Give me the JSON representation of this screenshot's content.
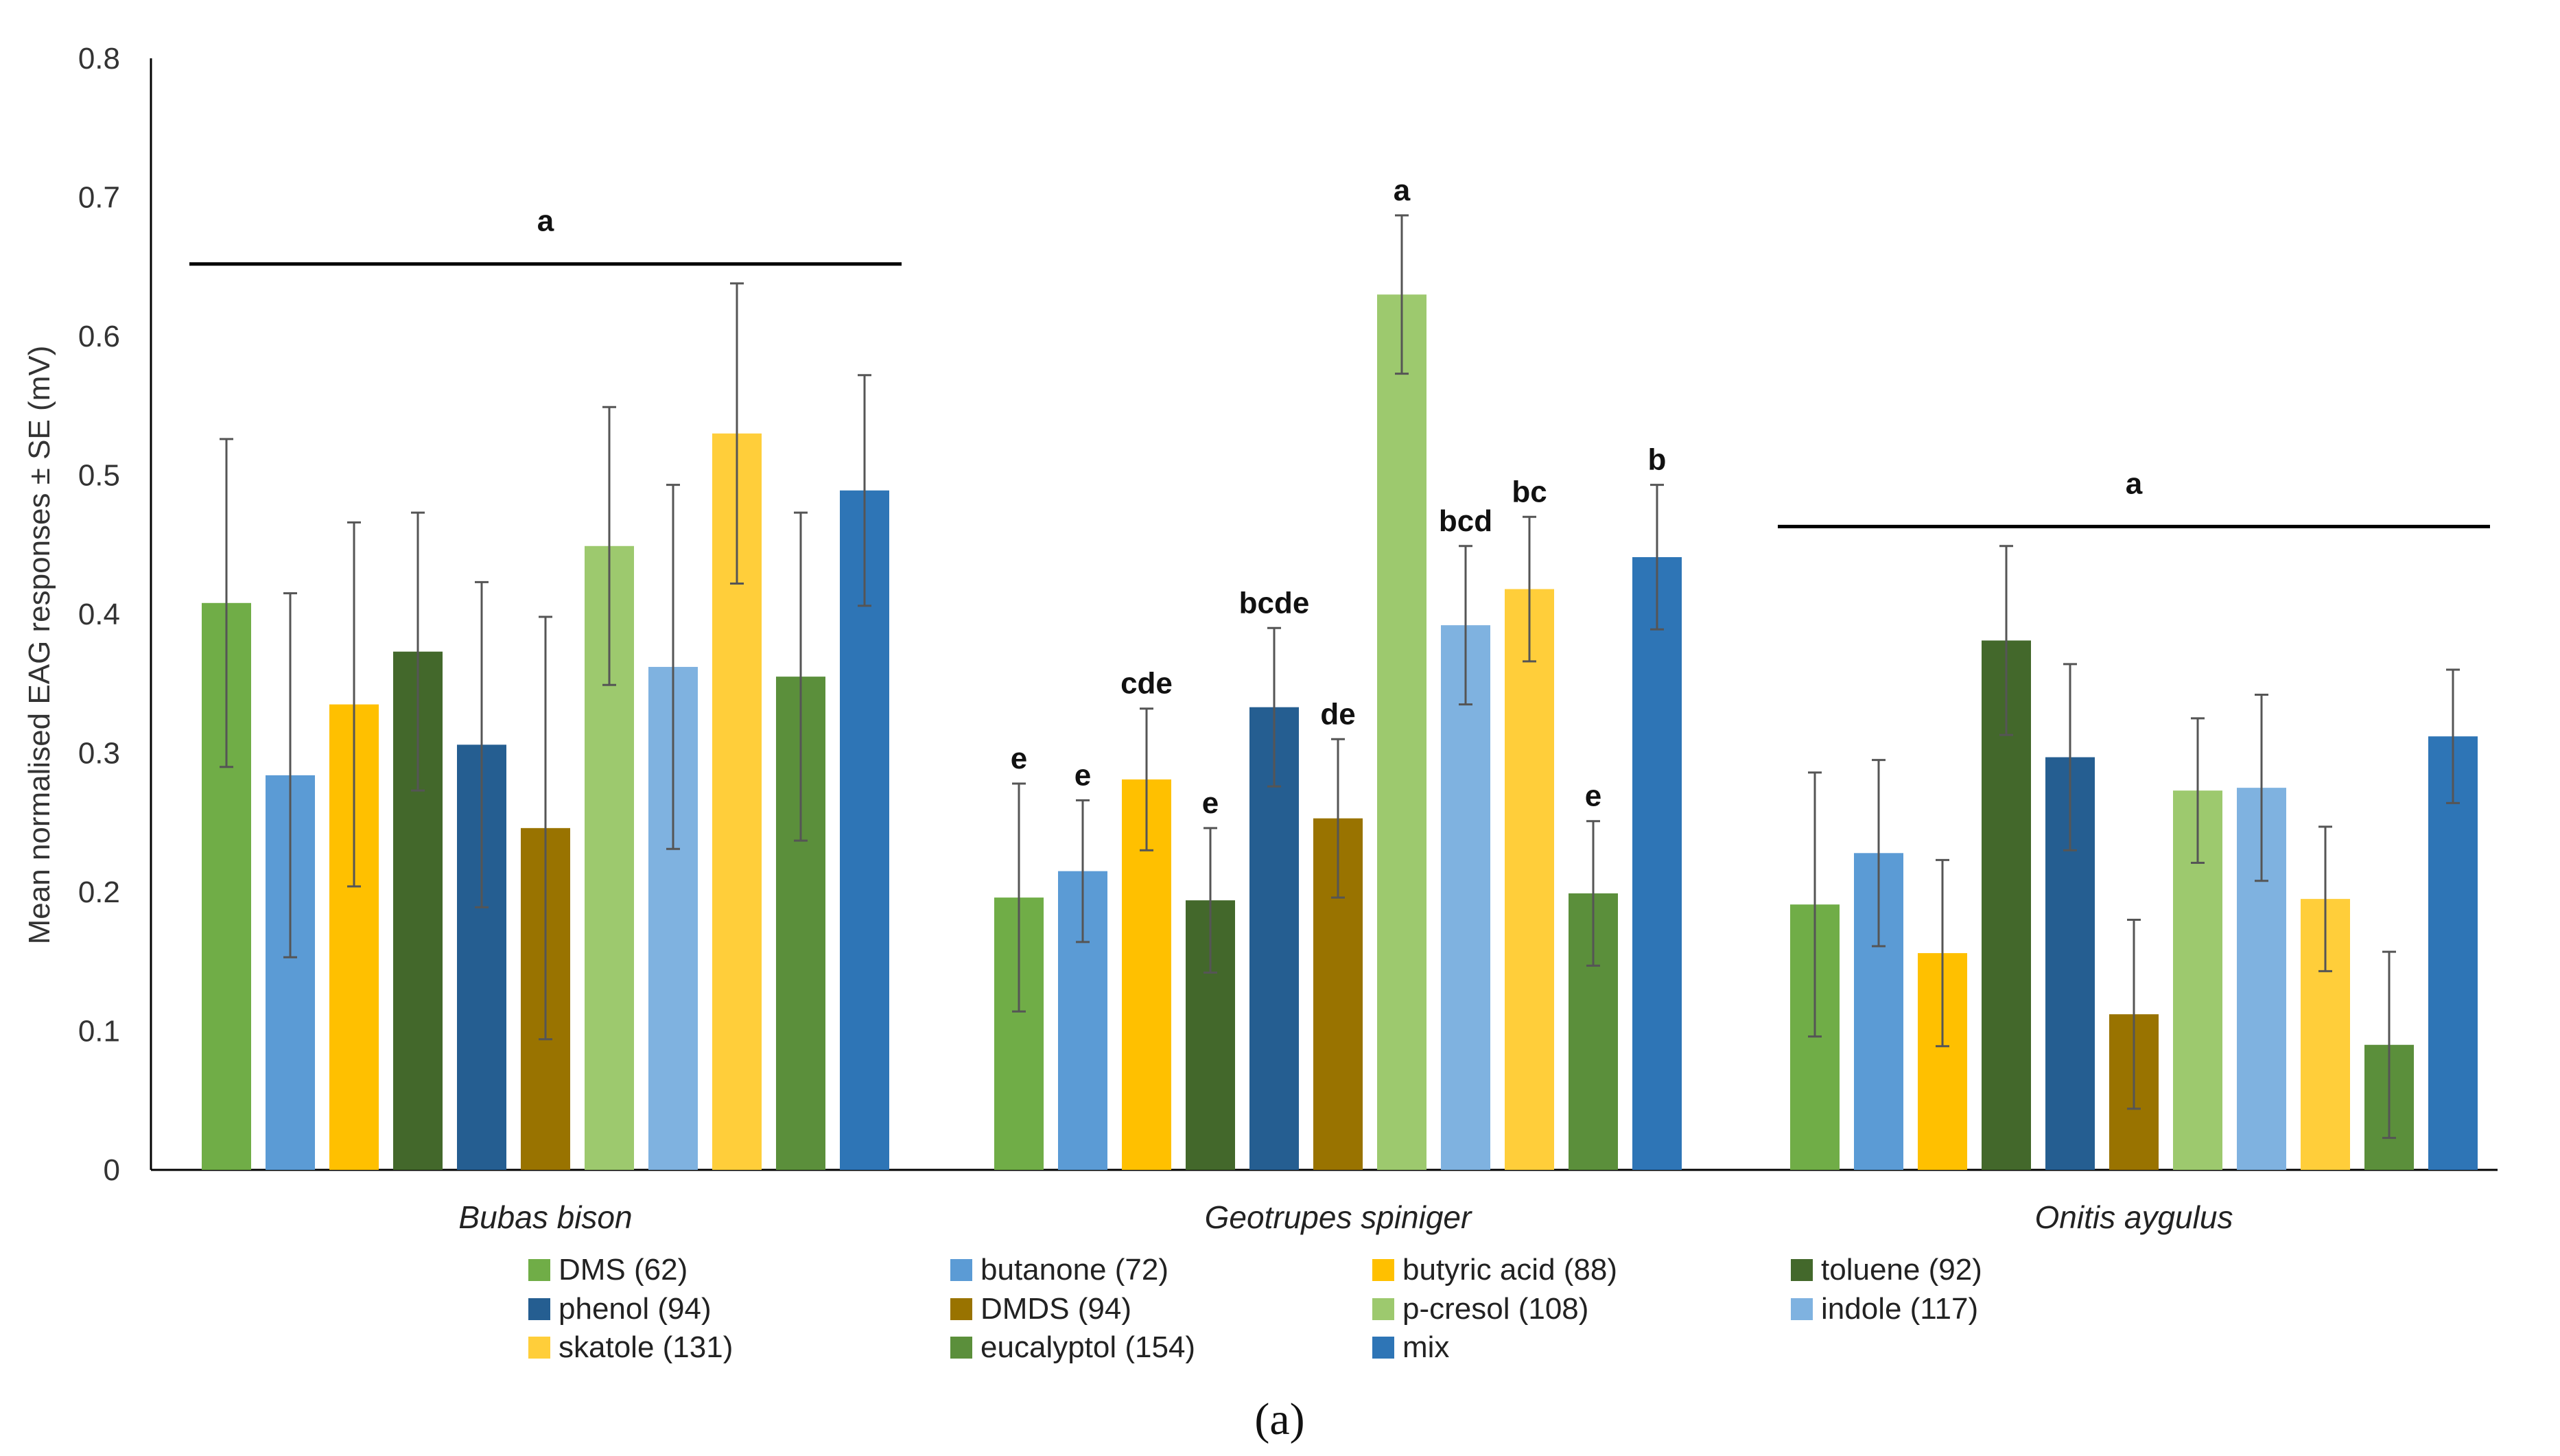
{
  "chart_data": {
    "type": "bar",
    "title": "",
    "caption": "(a)",
    "ylabel": "Mean normalised EAG responses ± SE (mV)",
    "xlabel": "",
    "ylim": [
      0,
      0.8
    ],
    "yticks": [
      "0",
      "0.1",
      "0.2",
      "0.3",
      "0.4",
      "0.5",
      "0.6",
      "0.7",
      "0.8"
    ],
    "categories": [
      "Bubas bison",
      "Geotrupes spiniger",
      "Onitis aygulus"
    ],
    "series": [
      {
        "name": "DMS (62)",
        "color": "#70ad47",
        "values": [
          0.408,
          0.196,
          0.191
        ],
        "errors": [
          0.118,
          0.082,
          0.095
        ],
        "letters": [
          "",
          "e",
          ""
        ]
      },
      {
        "name": "butanone (72)",
        "color": "#5b9bd5",
        "values": [
          0.284,
          0.215,
          0.228
        ],
        "errors": [
          0.131,
          0.051,
          0.067
        ],
        "letters": [
          "",
          "e",
          ""
        ]
      },
      {
        "name": "butyric acid (88)",
        "color": "#ffc000",
        "values": [
          0.335,
          0.281,
          0.156
        ],
        "errors": [
          0.131,
          0.051,
          0.067
        ],
        "letters": [
          "",
          "cde",
          ""
        ]
      },
      {
        "name": "toluene (92)",
        "color": "#43682b",
        "values": [
          0.373,
          0.194,
          0.381
        ],
        "errors": [
          0.1,
          0.052,
          0.068
        ],
        "letters": [
          "",
          "e",
          ""
        ]
      },
      {
        "name": "phenol (94)",
        "color": "#255e91",
        "values": [
          0.306,
          0.333,
          0.297
        ],
        "errors": [
          0.117,
          0.057,
          0.067
        ],
        "letters": [
          "",
          "bcde",
          ""
        ]
      },
      {
        "name": "DMDS (94)",
        "color": "#997300",
        "values": [
          0.246,
          0.253,
          0.112
        ],
        "errors": [
          0.152,
          0.057,
          0.068
        ],
        "letters": [
          "",
          "de",
          ""
        ]
      },
      {
        "name": "p-cresol (108)",
        "color": "#9dc96e",
        "values": [
          0.449,
          0.63,
          0.273
        ],
        "errors": [
          0.1,
          0.057,
          0.052
        ],
        "letters": [
          "",
          "a",
          ""
        ]
      },
      {
        "name": "indole (117)",
        "color": "#7fb2e0",
        "values": [
          0.362,
          0.392,
          0.275
        ],
        "errors": [
          0.131,
          0.057,
          0.067
        ],
        "letters": [
          "",
          "bcd",
          ""
        ]
      },
      {
        "name": "skatole (131)",
        "color": "#ffce3a",
        "values": [
          0.53,
          0.418,
          0.195
        ],
        "errors": [
          0.108,
          0.052,
          0.052
        ],
        "letters": [
          "",
          "bc",
          ""
        ]
      },
      {
        "name": "eucalyptol (154)",
        "color": "#5b8f3b",
        "values": [
          0.355,
          0.199,
          0.09
        ],
        "errors": [
          0.118,
          0.052,
          0.067
        ],
        "letters": [
          "",
          "e",
          ""
        ]
      },
      {
        "name": "mix",
        "color": "#2e75b6",
        "values": [
          0.489,
          0.441,
          0.312
        ],
        "errors": [
          0.083,
          0.052,
          0.048
        ],
        "letters": [
          "",
          "b",
          ""
        ]
      }
    ],
    "group_brackets": [
      {
        "category": "Bubas bison",
        "letter": "a",
        "level": 0.652
      },
      {
        "category": "Onitis aygulus",
        "letter": "a",
        "level": 0.463
      }
    ],
    "legend": {
      "placement": "bottom",
      "columns": 4
    }
  }
}
